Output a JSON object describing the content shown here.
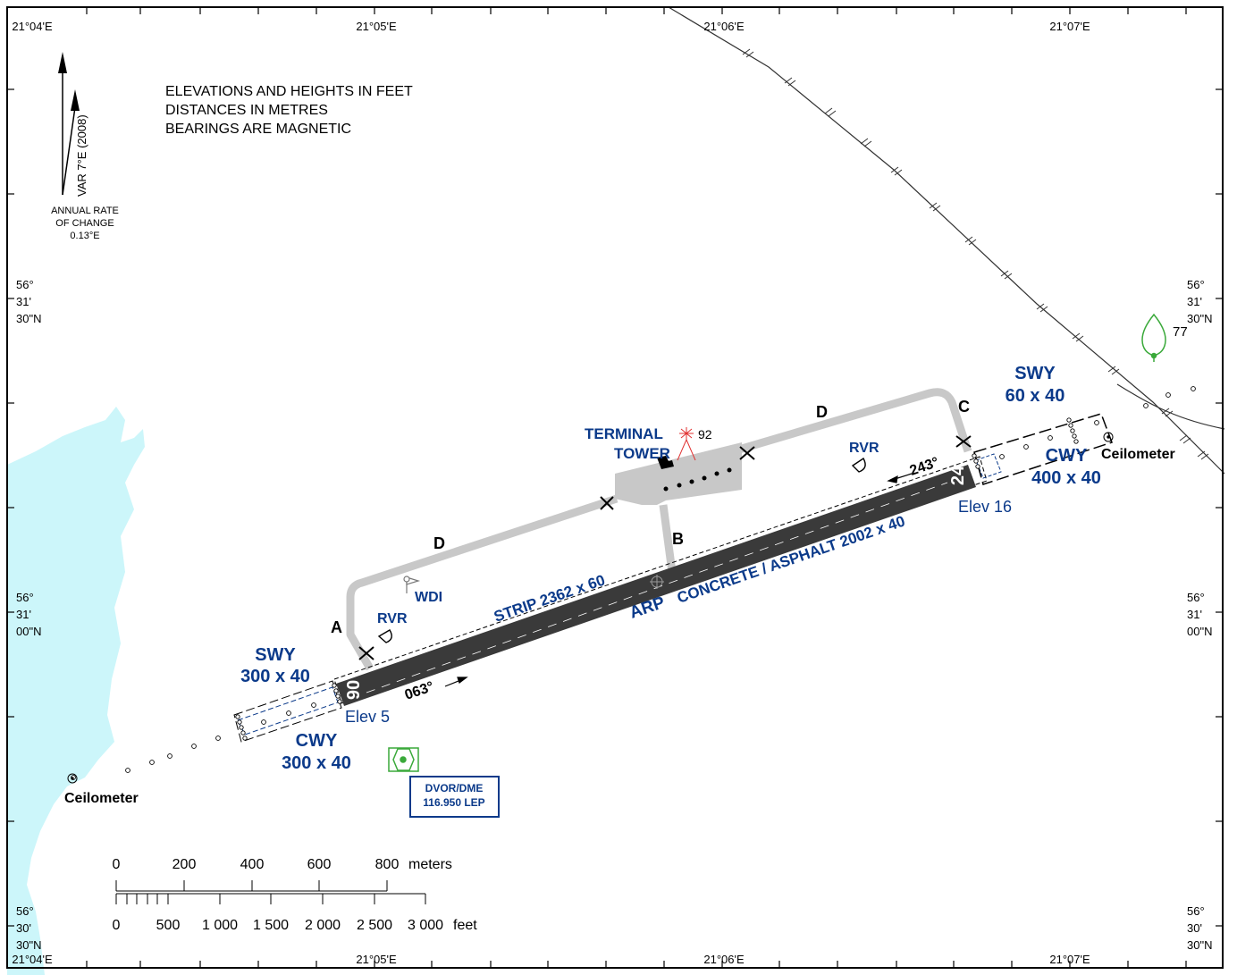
{
  "graticule": {
    "top_longitudes": [
      "21°04'E",
      "21°05'E",
      "21°06'E",
      "21°07'E"
    ],
    "bottom_longitudes": [
      "21°04'E",
      "21°05'E",
      "21°06'E",
      "21°07'E"
    ],
    "lat_left": [
      {
        "deg": "56°",
        "min": "31'",
        "sec": "30\"N"
      },
      {
        "deg": "56°",
        "min": "31'",
        "sec": "00\"N"
      },
      {
        "deg": "56°",
        "min": "30'",
        "sec": "30\"N"
      }
    ],
    "lat_right": [
      {
        "deg": "56°",
        "min": "31'",
        "sec": "30\"N"
      },
      {
        "deg": "56°",
        "min": "31'",
        "sec": "00\"N"
      },
      {
        "deg": "56°",
        "min": "30'",
        "sec": "30\"N"
      }
    ]
  },
  "notes": {
    "line1": "ELEVATIONS AND HEIGHTS IN FEET",
    "line2": "DISTANCES IN METRES",
    "line3": "BEARINGS ARE MAGNETIC"
  },
  "north_arrow": {
    "variation": "VAR 7°E (2008)",
    "rate_line1": "ANNUAL RATE",
    "rate_line2": "OF CHANGE",
    "rate_value": "0.13°E"
  },
  "runway": {
    "designator_west": "06",
    "designator_east": "24",
    "bearing_west": "063°",
    "bearing_east": "243°",
    "elev_west": "Elev 5",
    "elev_east": "Elev 16",
    "strip": "STRIP  2362 x 60",
    "surface": "CONCRETE / ASPHALT 2002 x 40",
    "arp": "ARP"
  },
  "west_end": {
    "swy_title": "SWY",
    "swy_dims": "300 x 40",
    "cwy_title": "CWY",
    "cwy_dims": "300 x 40"
  },
  "east_end": {
    "swy_title": "SWY",
    "swy_dims": "60 x 40",
    "cwy_title": "CWY",
    "cwy_dims": "400 x 40"
  },
  "taxiways": {
    "a": "A",
    "b": "B",
    "c": "C",
    "d1": "D",
    "d2": "D"
  },
  "facilities": {
    "terminal": "TERMINAL",
    "tower": "TOWER",
    "tower_height": "92",
    "wdi": "WDI",
    "rvr_west": "RVR",
    "rvr_east": "RVR",
    "ceilometer_west": "Ceilometer",
    "ceilometer_east": "Ceilometer",
    "obstacle_height": "77"
  },
  "navaid": {
    "type": "DVOR/DME",
    "freq": "116.950 LEP"
  },
  "scale": {
    "meters_labels": [
      "0",
      "200",
      "400",
      "600",
      "800"
    ],
    "meters_unit": "meters",
    "feet_labels": [
      "0",
      "500",
      "1 000",
      "1 500",
      "2 000",
      "2 500",
      "3 000"
    ],
    "feet_unit": "feet"
  },
  "colors": {
    "label_blue": "#0b3a8a",
    "runway": "#3a3a3a",
    "taxiway": "#c8c8c8",
    "water": "#ccf6fa",
    "navaid_green": "#3aa93a",
    "tower_red": "#e03030"
  }
}
